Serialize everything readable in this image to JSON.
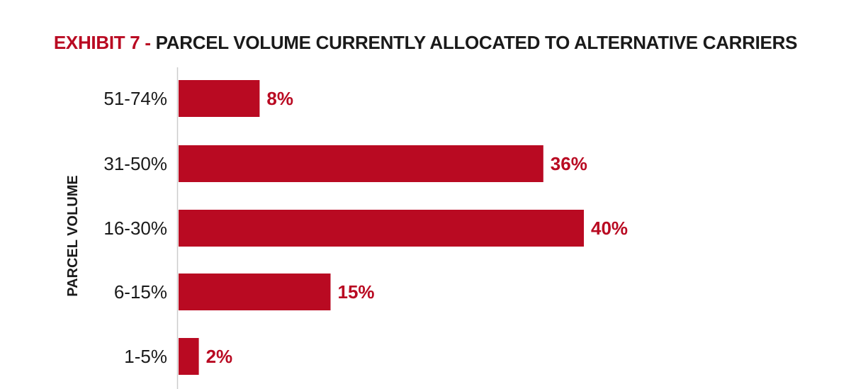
{
  "header": {
    "exhibit": "EXHIBIT 7 -",
    "title": "PARCEL VOLUME CURRENTLY ALLOCATED TO ALTERNATIVE CARRIERS"
  },
  "colors": {
    "bar": "#b90a22",
    "value_label": "#b90a22",
    "axis_line": "#cccccc",
    "text": "#1a1a1a"
  },
  "chart_data": {
    "type": "bar",
    "orientation": "horizontal",
    "title": "EXHIBIT 7 - PARCEL VOLUME CURRENTLY ALLOCATED TO ALTERNATIVE CARRIERS",
    "xlabel": "",
    "ylabel": "PARCEL VOLUME",
    "categories": [
      "51-74%",
      "31-50%",
      "16-30%",
      "6-15%",
      "1-5%"
    ],
    "values": [
      8,
      36,
      40,
      15,
      2
    ],
    "value_labels": [
      "8%",
      "36%",
      "40%",
      "15%",
      "2%"
    ],
    "xlim": [
      0,
      40
    ],
    "grid": false,
    "legend": "none"
  }
}
